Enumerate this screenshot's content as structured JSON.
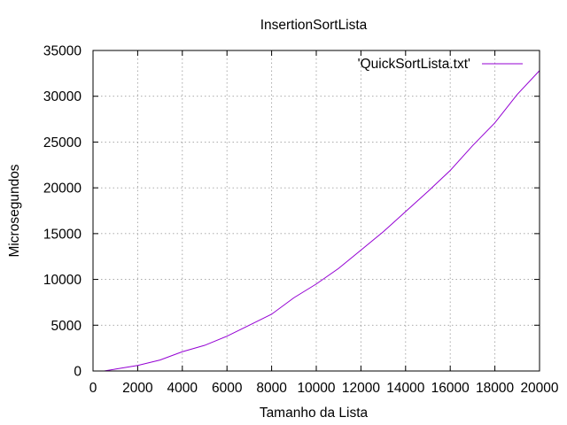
{
  "chart_data": {
    "type": "line",
    "title": "InsertionSortLista",
    "xlabel": "Tamanho da Lista",
    "ylabel": "Microsegundos",
    "xlim": [
      0,
      20000
    ],
    "ylim": [
      0,
      35000
    ],
    "x_ticks": [
      0,
      2000,
      4000,
      6000,
      8000,
      10000,
      12000,
      14000,
      16000,
      18000,
      20000
    ],
    "y_ticks": [
      0,
      5000,
      10000,
      15000,
      20000,
      25000,
      30000,
      35000
    ],
    "grid": true,
    "legend_position": "top-right",
    "series": [
      {
        "name": "'QuickSortLista.txt'",
        "color": "#9400d3",
        "x": [
          500,
          1000,
          2000,
          3000,
          4000,
          5000,
          6000,
          7000,
          8000,
          9000,
          10000,
          11000,
          12000,
          13000,
          14000,
          15000,
          16000,
          17000,
          18000,
          19000,
          20000
        ],
        "y": [
          0,
          200,
          600,
          1200,
          2100,
          2800,
          3800,
          5000,
          6200,
          8000,
          9500,
          11200,
          13200,
          15200,
          17400,
          19600,
          21900,
          24600,
          27100,
          30200,
          32800
        ]
      }
    ]
  }
}
